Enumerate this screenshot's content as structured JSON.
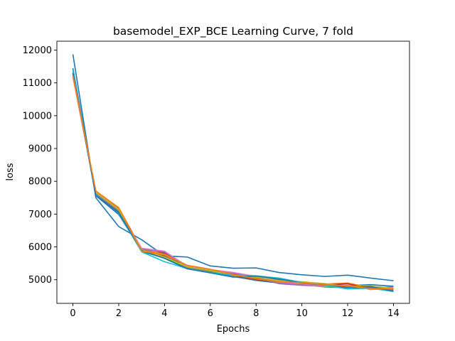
{
  "chart_data": {
    "type": "line",
    "title": "basemodel_EXP_BCE Learning Curve, 7 fold",
    "xlabel": "Epochs",
    "ylabel": "loss",
    "xlim": [
      -0.7,
      14.7
    ],
    "ylim": [
      4280,
      12270
    ],
    "x_ticks": [
      0,
      2,
      4,
      6,
      8,
      10,
      12,
      14
    ],
    "y_ticks": [
      5000,
      6000,
      7000,
      8000,
      9000,
      10000,
      11000,
      12000
    ],
    "grid": false,
    "legend": "none",
    "x": [
      0,
      1,
      2,
      3,
      4,
      5,
      6,
      7,
      8,
      9,
      10,
      11,
      12,
      13,
      14
    ],
    "series": [
      {
        "color": "#1f77b4",
        "values": [
          11870,
          7500,
          6620,
          6220,
          5730,
          5690,
          5420,
          5350,
          5360,
          5220,
          5150,
          5100,
          5140,
          5050,
          4970
        ]
      },
      {
        "color": "#1f77b4",
        "values": [
          11450,
          7560,
          6990,
          5880,
          5800,
          5350,
          5230,
          5100,
          4980,
          4900,
          4870,
          4820,
          4830,
          4780,
          4720
        ]
      },
      {
        "color": "#1f77b4",
        "values": [
          11420,
          7600,
          7080,
          5900,
          5700,
          5370,
          5270,
          5150,
          5040,
          4980,
          4880,
          4860,
          4820,
          4850,
          4800
        ]
      },
      {
        "color": "#ff7f0e",
        "values": [
          11280,
          7700,
          7200,
          5920,
          5780,
          5430,
          5290,
          5120,
          5020,
          4960,
          4850,
          4870,
          4900,
          4760,
          4750
        ]
      },
      {
        "color": "#2ca02c",
        "values": [
          11300,
          7650,
          7120,
          5860,
          5660,
          5360,
          5240,
          5100,
          5050,
          5000,
          4860,
          4780,
          4760,
          4760,
          4660
        ]
      },
      {
        "color": "#d62728",
        "values": [
          11250,
          7620,
          7150,
          5950,
          5830,
          5420,
          5300,
          5180,
          5000,
          4930,
          4900,
          4840,
          4880,
          4720,
          4700
        ]
      },
      {
        "color": "#9467bd",
        "values": [
          11350,
          7580,
          7060,
          5930,
          5850,
          5400,
          5260,
          5200,
          5070,
          4880,
          4830,
          4800,
          4780,
          4750,
          4780
        ]
      },
      {
        "color": "#8c564b",
        "values": [
          11200,
          7680,
          7170,
          5880,
          5720,
          5380,
          5270,
          5090,
          5010,
          4950,
          4880,
          4820,
          4760,
          4760,
          4700
        ]
      },
      {
        "color": "#e377c2",
        "values": [
          11180,
          7640,
          7110,
          5960,
          5870,
          5410,
          5310,
          5220,
          5100,
          4920,
          4870,
          4790,
          4840,
          4700,
          4760
        ]
      },
      {
        "color": "#7f7f7f",
        "values": [
          11320,
          7610,
          7090,
          5900,
          5750,
          5350,
          5250,
          5110,
          5060,
          4990,
          4930,
          4850,
          4800,
          4790,
          4680
        ]
      },
      {
        "color": "#bcbd22",
        "values": [
          11240,
          7670,
          7140,
          5910,
          5690,
          5390,
          5280,
          5130,
          5080,
          4970,
          4940,
          4880,
          4790,
          4810,
          4740
        ]
      },
      {
        "color": "#17becf",
        "values": [
          11400,
          7590,
          7030,
          5850,
          5550,
          5340,
          5220,
          5140,
          5120,
          5050,
          4920,
          4830,
          4720,
          4740,
          4640
        ]
      },
      {
        "color": "#1f77b4",
        "values": [
          11300,
          7570,
          7050,
          5890,
          5650,
          5330,
          5210,
          5080,
          5110,
          5020,
          4900,
          4860,
          4770,
          4790,
          4650
        ]
      },
      {
        "color": "#ff7f0e",
        "values": [
          11220,
          7710,
          7190,
          5870,
          5760,
          5440,
          5320,
          5160,
          5030,
          4940,
          4910,
          4850,
          4810,
          4730,
          4720
        ]
      }
    ]
  }
}
